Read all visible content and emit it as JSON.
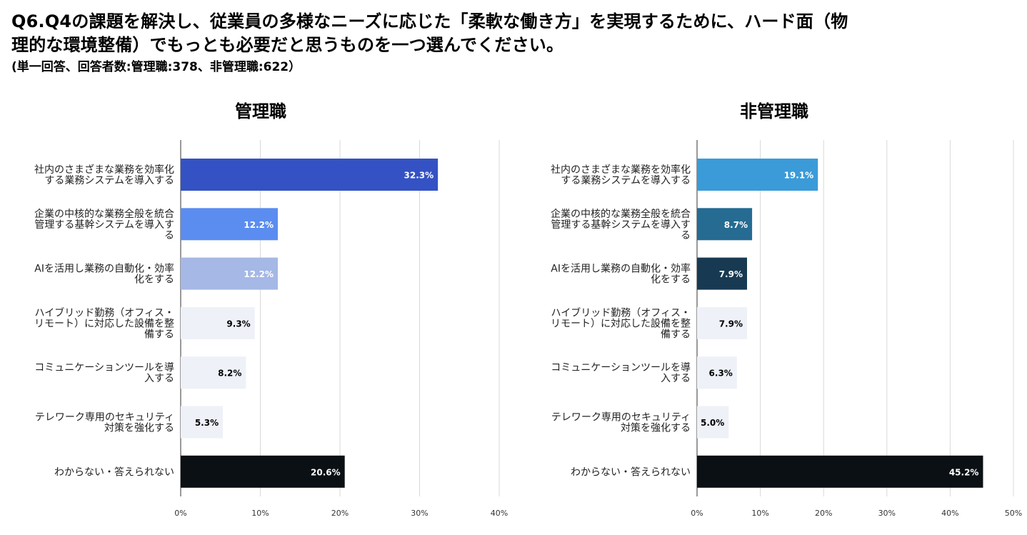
{
  "header": {
    "question_line1": "Q6.Q4の課題を解決し、従業員の多様なニーズに応じた「柔軟な働き方」を実現するために、ハード面（物",
    "question_line2": "理的な環境整備）でもっとも必要だと思うものを一つ選んでください。",
    "note": "(単一回答、回答者数:管理職:378、非管理職:622）"
  },
  "chart_data": [
    {
      "type": "bar",
      "orientation": "horizontal",
      "title": "管理職",
      "categories": [
        [
          "社内のさまざまな業務を効率化",
          "する業務システムを導入する"
        ],
        [
          "企業の中核的な業務全般を統合",
          "管理する基幹システムを導入す",
          "る"
        ],
        [
          "AIを活用し業務の自動化・効率",
          "化をする"
        ],
        [
          "ハイブリッド勤務（オフィス・",
          "リモート）に対応した設備を整",
          "備する"
        ],
        [
          "コミュニケーションツールを導",
          "入する"
        ],
        [
          "テレワーク専用のセキュリティ",
          "対策を強化する"
        ],
        [
          "わからない・答えられない"
        ]
      ],
      "values": [
        32.3,
        12.2,
        12.2,
        9.3,
        8.2,
        5.3,
        20.6
      ],
      "value_labels": [
        "32.3%",
        "12.2%",
        "12.2%",
        "9.3%",
        "8.2%",
        "5.3%",
        "20.6%"
      ],
      "bar_colors": [
        "#3452c4",
        "#5b8df0",
        "#a5b8e6",
        "#eef1f8",
        "#eef1f8",
        "#eef1f8",
        "#0a1014"
      ],
      "label_colors": [
        "#ffffff",
        "#ffffff",
        "#ffffff",
        "#000000",
        "#000000",
        "#000000",
        "#ffffff"
      ],
      "xlim": [
        0,
        40
      ],
      "xticks": [
        "0%",
        "10%",
        "20%",
        "30%",
        "40%"
      ],
      "grid": true
    },
    {
      "type": "bar",
      "orientation": "horizontal",
      "title": "非管理職",
      "categories": [
        [
          "社内のさまざまな業務を効率化",
          "する業務システムを導入する"
        ],
        [
          "企業の中核的な業務全般を統合",
          "管理する基幹システムを導入す",
          "る"
        ],
        [
          "AIを活用し業務の自動化・効率",
          "化をする"
        ],
        [
          "ハイブリッド勤務（オフィス・",
          "リモート）に対応した設備を整",
          "備する"
        ],
        [
          "コミュニケーションツールを導",
          "入する"
        ],
        [
          "テレワーク専用のセキュリティ",
          "対策を強化する"
        ],
        [
          "わからない・答えられない"
        ]
      ],
      "values": [
        19.1,
        8.7,
        7.9,
        7.9,
        6.3,
        5.0,
        45.2
      ],
      "value_labels": [
        "19.1%",
        "8.7%",
        "7.9%",
        "7.9%",
        "6.3%",
        "5.0%",
        "45.2%"
      ],
      "bar_colors": [
        "#3a9bd8",
        "#256b92",
        "#173a52",
        "#eef1f8",
        "#eef1f8",
        "#eef1f8",
        "#0a1014"
      ],
      "label_colors": [
        "#ffffff",
        "#ffffff",
        "#ffffff",
        "#000000",
        "#000000",
        "#000000",
        "#ffffff"
      ],
      "xlim": [
        0,
        50
      ],
      "xticks": [
        "0%",
        "10%",
        "20%",
        "30%",
        "40%",
        "50%"
      ],
      "grid": true
    }
  ]
}
